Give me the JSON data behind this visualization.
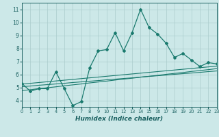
{
  "title": "",
  "xlabel": "Humidex (Indice chaleur)",
  "ylabel": "",
  "background_color": "#cce8e8",
  "grid_color": "#aacccc",
  "line_color": "#1a7a6e",
  "x_data": [
    0,
    1,
    2,
    3,
    4,
    5,
    6,
    7,
    8,
    9,
    10,
    11,
    12,
    13,
    14,
    15,
    16,
    17,
    18,
    19,
    20,
    21,
    22,
    23
  ],
  "y_main": [
    5.3,
    4.7,
    4.9,
    4.9,
    6.2,
    4.9,
    3.6,
    3.9,
    6.5,
    7.8,
    7.9,
    9.2,
    7.8,
    9.2,
    11.0,
    9.6,
    9.1,
    8.4,
    7.3,
    7.6,
    7.1,
    6.6,
    6.9,
    6.8
  ],
  "y_reg1": [
    5.05,
    5.1,
    5.16,
    5.21,
    5.26,
    5.31,
    5.37,
    5.42,
    5.47,
    5.52,
    5.58,
    5.63,
    5.68,
    5.73,
    5.79,
    5.84,
    5.89,
    5.94,
    6.0,
    6.05,
    6.1,
    6.15,
    6.21,
    6.26
  ],
  "y_reg2": [
    4.75,
    4.82,
    4.9,
    4.97,
    5.04,
    5.12,
    5.19,
    5.26,
    5.34,
    5.41,
    5.48,
    5.56,
    5.63,
    5.7,
    5.78,
    5.85,
    5.92,
    6.0,
    6.07,
    6.14,
    6.22,
    6.29,
    6.36,
    6.44
  ],
  "y_reg3": [
    5.25,
    5.31,
    5.37,
    5.43,
    5.49,
    5.55,
    5.61,
    5.67,
    5.73,
    5.79,
    5.85,
    5.91,
    5.97,
    6.03,
    6.09,
    6.15,
    6.21,
    6.27,
    6.33,
    6.39,
    6.45,
    6.51,
    6.57,
    6.63
  ],
  "xlim": [
    0,
    23
  ],
  "ylim": [
    3.5,
    11.5
  ],
  "yticks": [
    4,
    5,
    6,
    7,
    8,
    9,
    10,
    11
  ],
  "xticks": [
    0,
    1,
    2,
    3,
    4,
    5,
    6,
    7,
    8,
    9,
    10,
    11,
    12,
    13,
    14,
    15,
    16,
    17,
    18,
    19,
    20,
    21,
    22,
    23
  ]
}
